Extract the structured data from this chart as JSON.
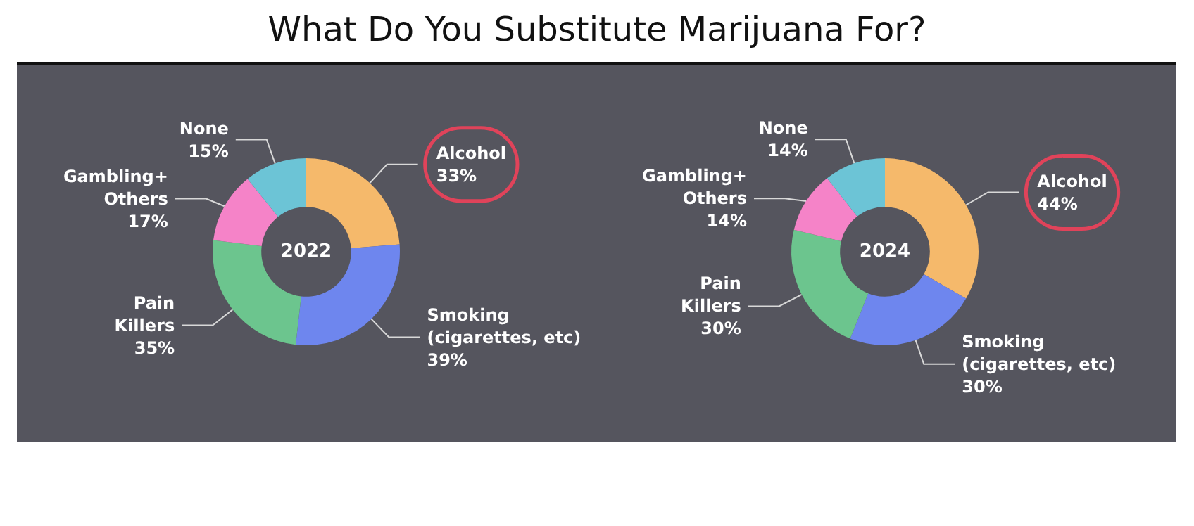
{
  "chart_data": [
    {
      "type": "donut",
      "title": "What Do You Substitute Marijuana For?",
      "annotations": [
        "2022"
      ],
      "categories": [
        "Alcohol",
        "Smoking\n(cigarettes, etc)",
        "Pain\nKillers",
        "Gambling+\nOthers",
        "None"
      ],
      "values": [
        33,
        39,
        35,
        17,
        15
      ],
      "value_labels": [
        "33%",
        "39%",
        "35%",
        "17%",
        "15%"
      ],
      "colors": [
        "#f5b96b",
        "#6e86ee",
        "#6cc58e",
        "#f583c8",
        "#6cc4d6"
      ],
      "legend": false
    },
    {
      "type": "donut",
      "annotations": [
        "2024"
      ],
      "categories": [
        "Alcohol",
        "Smoking\n(cigarettes, etc)",
        "Pain\nKillers",
        "Gambling+\nOthers",
        "None"
      ],
      "values": [
        44,
        30,
        30,
        14,
        14
      ],
      "value_labels": [
        "44%",
        "30%",
        "30%",
        "14%",
        "14%"
      ],
      "colors": [
        "#f5b96b",
        "#6e86ee",
        "#6cc58e",
        "#f583c8",
        "#6cc4d6"
      ],
      "legend": false
    }
  ]
}
